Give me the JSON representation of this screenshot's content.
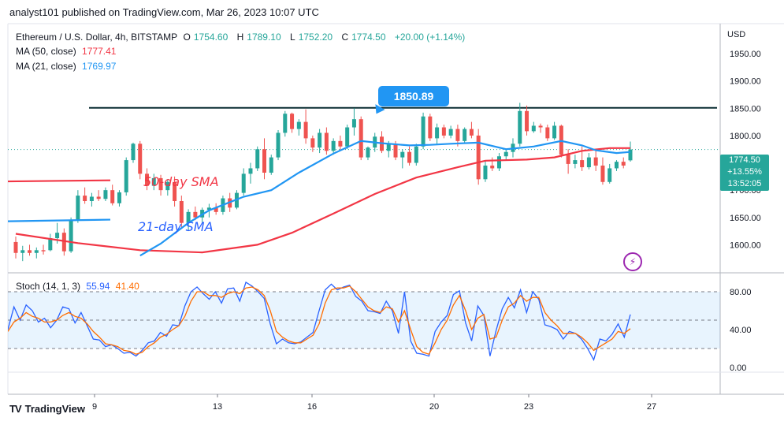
{
  "header": {
    "published": "analyst101 published on TradingView.com, Mar 26, 2023 10:07 UTC"
  },
  "symbol": {
    "name": "Ethereum / U.S. Dollar, 4h, BITSTAMP",
    "o_label": "O",
    "o": "1754.60",
    "h_label": "H",
    "h": "1789.10",
    "l_label": "L",
    "l": "1752.20",
    "c_label": "C",
    "c": "1774.50",
    "change": "+20.00 (+1.14%)"
  },
  "ma50": {
    "label": "MA (50, close)",
    "value": "1777.41"
  },
  "ma21": {
    "label": "MA (21, close)",
    "value": "1769.97"
  },
  "stoch": {
    "label": "Stoch (14, 1, 3)",
    "k": "55.94",
    "d": "41.40"
  },
  "price_tag": {
    "price": "1774.50",
    "change": "+13.55%",
    "time": "13:52:05"
  },
  "currency": "USD",
  "callout": "1850.89",
  "annotations": {
    "sma50": "50-day SMA",
    "sma21": "21-day SMA"
  },
  "brand": "TradingView",
  "colors": {
    "up": "#26a69a",
    "down": "#ef5350",
    "ma50": "#f23645",
    "ma21": "#2196f3",
    "stoch_k": "#2962ff",
    "stoch_d": "#ff6d00",
    "resistance": "#0b2e33"
  },
  "chart_data": [
    {
      "type": "candlestick",
      "title": "Ethereum / U.S. Dollar, 4h, BITSTAMP",
      "x_ticks": [
        "9",
        "13",
        "16",
        "20",
        "23",
        "27"
      ],
      "y_ticks": [
        "1600.00",
        "1650.00",
        "1700.00",
        "1750.00",
        "1800.00",
        "1850.00",
        "1900.00",
        "1950.00"
      ],
      "ylim": [
        1550,
        2005
      ],
      "resistance_level": 1850.89,
      "candles": [
        [
          1605,
          1615,
          1575,
          1585
        ],
        [
          1585,
          1598,
          1570,
          1590
        ],
        [
          1590,
          1600,
          1580,
          1585
        ],
        [
          1585,
          1595,
          1575,
          1590
        ],
        [
          1590,
          1600,
          1582,
          1588
        ],
        [
          1590,
          1620,
          1588,
          1612
        ],
        [
          1612,
          1640,
          1602,
          1622
        ],
        [
          1622,
          1630,
          1580,
          1588
        ],
        [
          1588,
          1650,
          1585,
          1645
        ],
        [
          1645,
          1700,
          1640,
          1690
        ],
        [
          1690,
          1705,
          1675,
          1680
        ],
        [
          1680,
          1695,
          1670,
          1688
        ],
        [
          1688,
          1700,
          1680,
          1684
        ],
        [
          1684,
          1705,
          1680,
          1700
        ],
        [
          1700,
          1710,
          1672,
          1676
        ],
        [
          1676,
          1700,
          1670,
          1696
        ],
        [
          1696,
          1760,
          1690,
          1755
        ],
        [
          1755,
          1787,
          1750,
          1785
        ],
        [
          1785,
          1790,
          1720,
          1730
        ],
        [
          1730,
          1740,
          1700,
          1708
        ],
        [
          1708,
          1730,
          1700,
          1722
        ],
        [
          1722,
          1728,
          1690,
          1700
        ],
        [
          1700,
          1720,
          1690,
          1715
        ],
        [
          1715,
          1725,
          1670,
          1680
        ],
        [
          1680,
          1690,
          1630,
          1640
        ],
        [
          1640,
          1665,
          1625,
          1660
        ],
        [
          1660,
          1670,
          1645,
          1650
        ],
        [
          1650,
          1668,
          1640,
          1664
        ],
        [
          1664,
          1675,
          1650,
          1668
        ],
        [
          1668,
          1676,
          1655,
          1660
        ],
        [
          1660,
          1690,
          1655,
          1685
        ],
        [
          1685,
          1695,
          1660,
          1668
        ],
        [
          1668,
          1700,
          1665,
          1695
        ],
        [
          1695,
          1740,
          1690,
          1730
        ],
        [
          1730,
          1750,
          1712,
          1740
        ],
        [
          1740,
          1780,
          1735,
          1775
        ],
        [
          1775,
          1795,
          1720,
          1732
        ],
        [
          1732,
          1765,
          1728,
          1760
        ],
        [
          1760,
          1810,
          1755,
          1805
        ],
        [
          1805,
          1845,
          1798,
          1840
        ],
        [
          1840,
          1842,
          1805,
          1812
        ],
        [
          1812,
          1830,
          1800,
          1825
        ],
        [
          1825,
          1848,
          1785,
          1795
        ],
        [
          1795,
          1800,
          1770,
          1778
        ],
        [
          1778,
          1812,
          1768,
          1805
        ],
        [
          1805,
          1815,
          1765,
          1772
        ],
        [
          1772,
          1795,
          1765,
          1790
        ],
        [
          1790,
          1800,
          1772,
          1780
        ],
        [
          1780,
          1820,
          1775,
          1815
        ],
        [
          1815,
          1850,
          1800,
          1830
        ],
        [
          1830,
          1835,
          1755,
          1760
        ],
        [
          1760,
          1780,
          1755,
          1778
        ],
        [
          1778,
          1805,
          1770,
          1798
        ],
        [
          1798,
          1808,
          1768,
          1772
        ],
        [
          1772,
          1790,
          1760,
          1785
        ],
        [
          1785,
          1790,
          1755,
          1760
        ],
        [
          1760,
          1775,
          1740,
          1770
        ],
        [
          1770,
          1780,
          1745,
          1750
        ],
        [
          1750,
          1785,
          1745,
          1780
        ],
        [
          1780,
          1842,
          1775,
          1835
        ],
        [
          1835,
          1840,
          1790,
          1795
        ],
        [
          1795,
          1822,
          1785,
          1815
        ],
        [
          1815,
          1820,
          1795,
          1800
        ],
        [
          1800,
          1818,
          1795,
          1812
        ],
        [
          1812,
          1820,
          1780,
          1790
        ],
        [
          1790,
          1815,
          1785,
          1812
        ],
        [
          1812,
          1825,
          1795,
          1800
        ],
        [
          1800,
          1812,
          1710,
          1720
        ],
        [
          1720,
          1755,
          1715,
          1745
        ],
        [
          1745,
          1760,
          1735,
          1740
        ],
        [
          1740,
          1768,
          1735,
          1762
        ],
        [
          1762,
          1775,
          1755,
          1770
        ],
        [
          1770,
          1795,
          1760,
          1785
        ],
        [
          1785,
          1860,
          1780,
          1845
        ],
        [
          1845,
          1855,
          1800,
          1808
        ],
        [
          1808,
          1825,
          1805,
          1818
        ],
        [
          1818,
          1822,
          1805,
          1815
        ],
        [
          1815,
          1820,
          1790,
          1795
        ],
        [
          1795,
          1825,
          1792,
          1818
        ],
        [
          1818,
          1820,
          1760,
          1765
        ],
        [
          1765,
          1775,
          1730,
          1748
        ],
        [
          1748,
          1765,
          1740,
          1755
        ],
        [
          1755,
          1780,
          1735,
          1742
        ],
        [
          1742,
          1768,
          1738,
          1760
        ],
        [
          1760,
          1772,
          1735,
          1745
        ],
        [
          1745,
          1760,
          1710,
          1715
        ],
        [
          1715,
          1748,
          1712,
          1740
        ],
        [
          1740,
          1755,
          1735,
          1752
        ],
        [
          1752,
          1760,
          1740,
          1745
        ],
        [
          1754.6,
          1789.1,
          1752.2,
          1774.5
        ]
      ],
      "ma50": [
        [
          0,
          1620
        ],
        [
          9,
          1603
        ],
        [
          18,
          1590
        ],
        [
          27,
          1586
        ],
        [
          35,
          1600
        ],
        [
          40,
          1622
        ],
        [
          46,
          1657
        ],
        [
          52,
          1693
        ],
        [
          58,
          1723
        ],
        [
          64,
          1742
        ],
        [
          68,
          1754
        ],
        [
          74,
          1756
        ],
        [
          78,
          1760
        ],
        [
          82,
          1772
        ],
        [
          86,
          1777
        ],
        [
          89,
          1777
        ]
      ],
      "ma21": [
        [
          18,
          1580
        ],
        [
          21,
          1602
        ],
        [
          25,
          1640
        ],
        [
          28,
          1663
        ],
        [
          33,
          1688
        ],
        [
          37,
          1700
        ],
        [
          41,
          1732
        ],
        [
          46,
          1767
        ],
        [
          50,
          1790
        ],
        [
          53,
          1786
        ],
        [
          57,
          1782
        ],
        [
          60,
          1783
        ],
        [
          63,
          1785
        ],
        [
          67,
          1787
        ],
        [
          71,
          1775
        ],
        [
          75,
          1780
        ],
        [
          79,
          1790
        ],
        [
          82,
          1782
        ],
        [
          84,
          1773
        ],
        [
          87,
          1768
        ],
        [
          89,
          1770
        ]
      ],
      "left_lines": [
        {
          "name": "50-day SMA",
          "points": [
            [
              0,
              1716
            ],
            [
              1,
              1718
            ]
          ]
        },
        {
          "name": "21-day SMA",
          "points": [
            [
              0,
              1643
            ],
            [
              1,
              1646
            ]
          ]
        }
      ]
    },
    {
      "type": "line",
      "title": "Stoch (14, 1, 3)",
      "ylim": [
        -5,
        100
      ],
      "y_ticks": [
        "0.00",
        "40.00",
        "80.00"
      ],
      "levels": [
        20,
        50,
        80
      ],
      "series": [
        {
          "name": "%K",
          "values": [
            40,
            64,
            50,
            66,
            60,
            48,
            52,
            42,
            50,
            64,
            62,
            47,
            58,
            44,
            30,
            29,
            22,
            24,
            20,
            15,
            16,
            12,
            18,
            26,
            28,
            37,
            33,
            45,
            44,
            65,
            80,
            85,
            78,
            72,
            80,
            68,
            83,
            84,
            70,
            90,
            86,
            80,
            73,
            46,
            25,
            30,
            26,
            25,
            27,
            32,
            37,
            60,
            82,
            88,
            82,
            85,
            87,
            75,
            70,
            60,
            59,
            57,
            70,
            60,
            36,
            80,
            28,
            15,
            14,
            12,
            38,
            48,
            55,
            77,
            81,
            47,
            28,
            65,
            55,
            12,
            39,
            62,
            74,
            63,
            82,
            58,
            80,
            72,
            45,
            43,
            40,
            30,
            38,
            36,
            30,
            20,
            8,
            30,
            28,
            35,
            46,
            32,
            56
          ]
        },
        {
          "name": "%D",
          "values": [
            38,
            48,
            52,
            58,
            54,
            52,
            48,
            48,
            50,
            55,
            58,
            54,
            52,
            46,
            38,
            32,
            25,
            24,
            22,
            18,
            17,
            14,
            16,
            22,
            26,
            32,
            35,
            40,
            44,
            54,
            70,
            80,
            80,
            76,
            76,
            74,
            78,
            80,
            78,
            84,
            85,
            82,
            76,
            60,
            38,
            32,
            28,
            26,
            26,
            30,
            34,
            46,
            68,
            82,
            84,
            84,
            86,
            80,
            72,
            64,
            60,
            58,
            64,
            62,
            48,
            60,
            40,
            22,
            16,
            14,
            26,
            40,
            50,
            66,
            76,
            60,
            40,
            52,
            56,
            30,
            32,
            50,
            64,
            68,
            76,
            70,
            74,
            74,
            58,
            50,
            44,
            36,
            36,
            36,
            32,
            26,
            18,
            22,
            26,
            30,
            38,
            36,
            41
          ]
        }
      ]
    }
  ]
}
